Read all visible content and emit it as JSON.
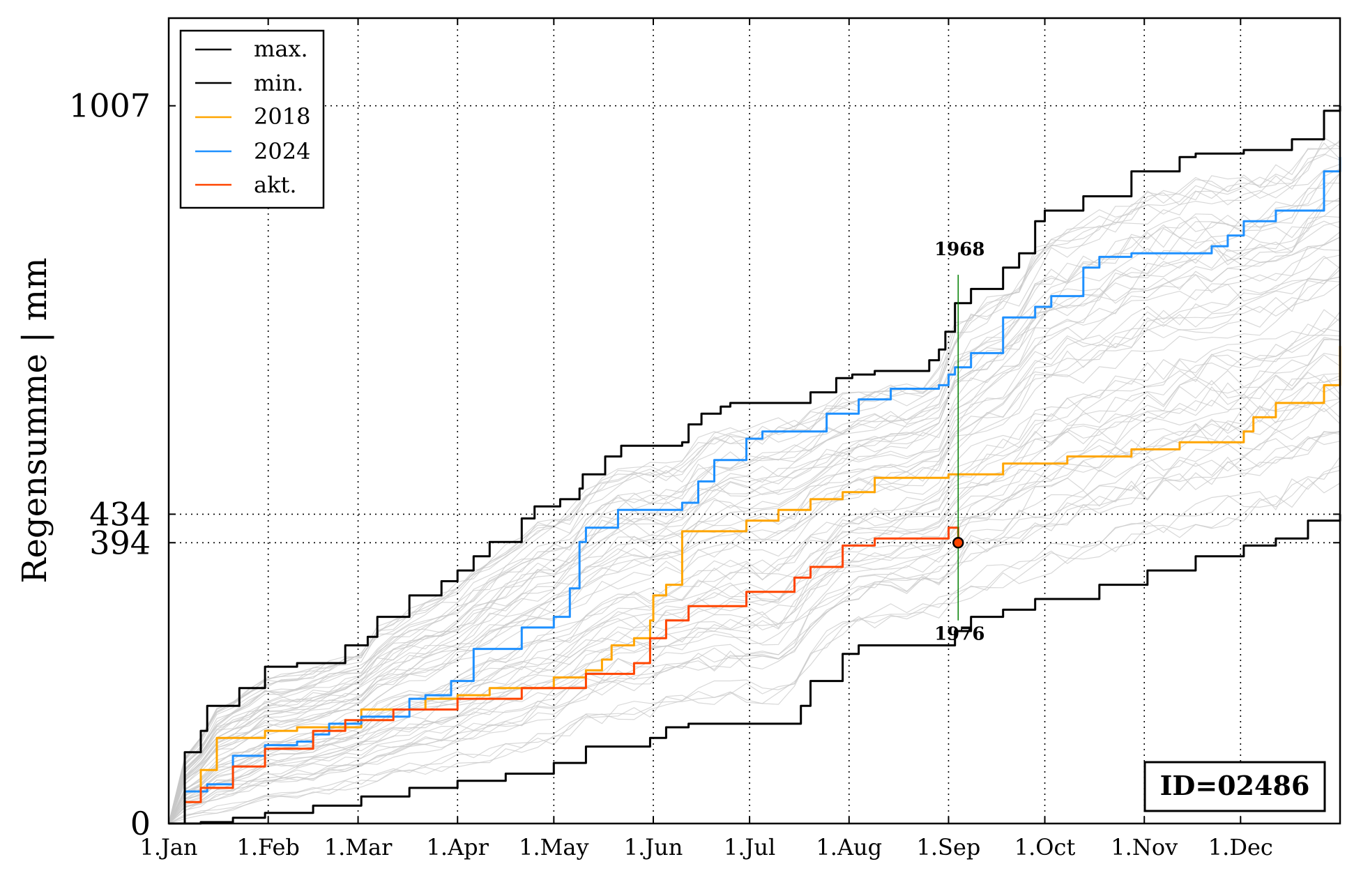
{
  "chart_data": {
    "type": "line",
    "ylabel": "Regensumme | mm",
    "x_ticks": [
      "1.Jan",
      "1.Feb",
      "1.Mar",
      "1.Apr",
      "1.May",
      "1.Jun",
      "1.Jul",
      "1.Aug",
      "1.Sep",
      "1.Oct",
      "1.Nov",
      "1.Dec"
    ],
    "x_tick_days": [
      0,
      31,
      59,
      90,
      120,
      151,
      181,
      212,
      243,
      273,
      304,
      334
    ],
    "xlim": [
      0,
      365
    ],
    "ylim": [
      0,
      1130
    ],
    "y_ticks": [
      0,
      394,
      434,
      1007
    ],
    "y_tick_labels": [
      "0",
      "394",
      "434",
      "1007"
    ],
    "grid": true,
    "legend_position": "top-left",
    "id_label": "ID=02486",
    "colors": {
      "max": "#000000",
      "min": "#000000",
      "y2018": "#ffa500",
      "y2024": "#1e90ff",
      "akt": "#ff4500",
      "background": "#c8c8c8",
      "marker_line": "#008000"
    },
    "series": [
      {
        "name": "max.",
        "key": "max",
        "color": "#000000",
        "x": [
          0,
          5,
          10,
          12,
          22,
          30,
          40,
          55,
          62,
          65,
          75,
          85,
          90,
          95,
          100,
          110,
          114,
          122,
          128,
          129,
          136,
          141,
          160,
          162,
          166,
          172,
          175,
          184,
          200,
          208,
          213,
          220,
          237,
          240,
          242,
          245,
          250,
          260,
          265,
          270,
          273,
          285,
          300,
          315,
          320,
          335,
          350,
          360,
          365
        ],
        "y": [
          0,
          100,
          130,
          165,
          190,
          220,
          225,
          250,
          262,
          290,
          320,
          340,
          355,
          375,
          395,
          428,
          445,
          455,
          470,
          490,
          515,
          530,
          535,
          560,
          575,
          585,
          590,
          590,
          605,
          625,
          630,
          635,
          650,
          665,
          690,
          730,
          750,
          780,
          800,
          845,
          860,
          880,
          915,
          935,
          940,
          945,
          960,
          1000,
          1007
        ]
      },
      {
        "name": "min.",
        "key": "min",
        "color": "#000000",
        "x": [
          0,
          10,
          20,
          30,
          45,
          60,
          75,
          90,
          105,
          120,
          130,
          150,
          155,
          162,
          190,
          197,
          200,
          210,
          215,
          245,
          250,
          260,
          270,
          290,
          305,
          320,
          335,
          345,
          355,
          365
        ],
        "y": [
          0,
          2,
          8,
          15,
          25,
          38,
          50,
          60,
          70,
          85,
          108,
          120,
          135,
          140,
          140,
          165,
          200,
          238,
          250,
          270,
          290,
          300,
          315,
          335,
          355,
          375,
          390,
          400,
          425,
          434
        ]
      },
      {
        "name": "2018",
        "key": "y2018",
        "color": "#ffa500",
        "x": [
          0,
          5,
          10,
          15,
          30,
          40,
          60,
          80,
          90,
          100,
          120,
          130,
          135,
          138,
          145,
          150,
          151,
          155,
          160,
          180,
          190,
          200,
          210,
          220,
          243,
          260,
          280,
          300,
          315,
          335,
          338,
          345,
          360,
          365
        ],
        "y": [
          0,
          45,
          75,
          120,
          130,
          135,
          160,
          175,
          180,
          190,
          205,
          215,
          230,
          250,
          260,
          285,
          320,
          335,
          410,
          425,
          440,
          455,
          465,
          485,
          490,
          505,
          515,
          525,
          535,
          550,
          570,
          590,
          615,
          670
        ]
      },
      {
        "name": "2024",
        "key": "y2024",
        "color": "#1e90ff",
        "x": [
          0,
          5,
          12,
          20,
          30,
          40,
          45,
          50,
          60,
          75,
          80,
          88,
          95,
          110,
          120,
          125,
          128,
          130,
          140,
          160,
          165,
          170,
          180,
          185,
          205,
          215,
          225,
          240,
          243,
          245,
          250,
          260,
          270,
          275,
          285,
          290,
          300,
          325,
          330,
          335,
          345,
          360,
          365
        ],
        "y": [
          0,
          45,
          55,
          95,
          110,
          115,
          125,
          140,
          150,
          175,
          180,
          200,
          245,
          275,
          290,
          330,
          395,
          415,
          440,
          450,
          480,
          510,
          540,
          550,
          575,
          595,
          610,
          615,
          630,
          640,
          660,
          710,
          725,
          740,
          780,
          795,
          800,
          810,
          825,
          845,
          860,
          915,
          935
        ]
      },
      {
        "name": "akt.",
        "key": "akt",
        "color": "#ff4500",
        "x": [
          0,
          5,
          10,
          20,
          30,
          45,
          55,
          70,
          90,
          110,
          130,
          145,
          150,
          155,
          162,
          180,
          195,
          200,
          210,
          220,
          243,
          246
        ],
        "y": [
          0,
          30,
          50,
          80,
          105,
          130,
          145,
          160,
          175,
          190,
          210,
          225,
          260,
          285,
          305,
          325,
          345,
          360,
          390,
          400,
          415,
          394
        ]
      }
    ],
    "annotations": [
      {
        "label": "1968",
        "x": 246,
        "y": 770,
        "anchor": "above"
      },
      {
        "label": "1976",
        "x": 246,
        "y": 285,
        "anchor": "below"
      }
    ],
    "current_marker": {
      "x": 246,
      "y": 394
    }
  }
}
